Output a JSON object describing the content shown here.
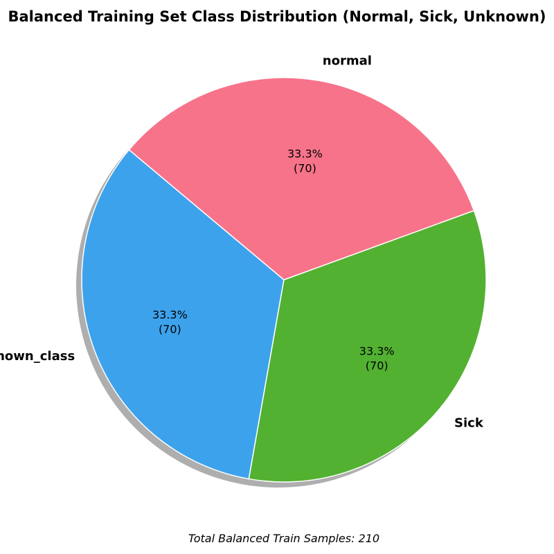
{
  "chart_data": {
    "type": "pie",
    "title": "Balanced Training Set Class Distribution (Normal, Sick, Unknown)",
    "slices": [
      {
        "label": "Unknown_class",
        "value": 70,
        "percent_label": "33.3%",
        "count_label": "(70)",
        "color": "#3da2ec"
      },
      {
        "label": "Sick",
        "value": 70,
        "percent_label": "33.3%",
        "count_label": "(70)",
        "color": "#52b131"
      },
      {
        "label": "normal",
        "value": 70,
        "percent_label": "33.3%",
        "count_label": "(70)",
        "color": "#f7738a"
      }
    ],
    "shadow": true,
    "footer": "Total Balanced Train Samples: 210"
  }
}
